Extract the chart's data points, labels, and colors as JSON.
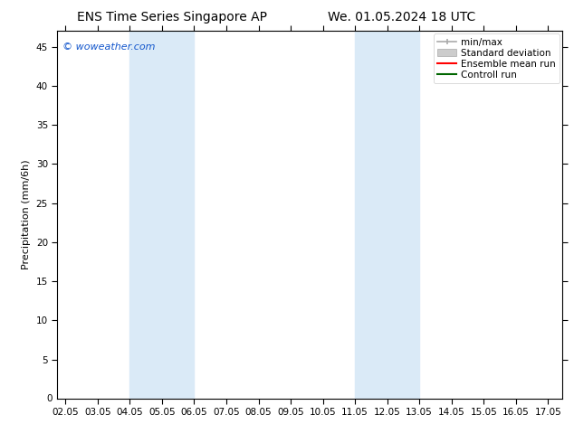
{
  "title_left": "ENS Time Series Singapore AP",
  "title_right": "We. 01.05.2024 18 UTC",
  "ylabel": "Precipitation (mm/6h)",
  "watermark": "© woweather.com",
  "watermark_color": "#1155cc",
  "bg_color": "#ffffff",
  "plot_bg_color": "#ffffff",
  "shaded_regions": [
    {
      "xmin": 4.05,
      "xmax": 6.05,
      "color": "#daeaf7"
    },
    {
      "xmin": 11.05,
      "xmax": 13.05,
      "color": "#daeaf7"
    }
  ],
  "x_ticks": [
    2.05,
    3.05,
    4.05,
    5.05,
    6.05,
    7.05,
    8.05,
    9.05,
    10.05,
    11.05,
    12.05,
    13.05,
    14.05,
    15.05,
    16.05,
    17.05
  ],
  "x_tick_labels": [
    "02.05",
    "03.05",
    "04.05",
    "05.05",
    "06.05",
    "07.05",
    "08.05",
    "09.05",
    "10.05",
    "11.05",
    "12.05",
    "13.05",
    "14.05",
    "15.05",
    "16.05",
    "17.05"
  ],
  "xlim": [
    1.8,
    17.5
  ],
  "ylim": [
    0,
    47
  ],
  "y_ticks": [
    5,
    10,
    15,
    20,
    25,
    30,
    35,
    40,
    45
  ],
  "y_tick_labels": [
    "5",
    "10",
    "15",
    "20",
    "25",
    "30",
    "35",
    "40",
    "45"
  ],
  "legend_entries": [
    {
      "label": "min/max",
      "color": "#aaaaaa",
      "style": "range"
    },
    {
      "label": "Standard deviation",
      "color": "#cccccc",
      "style": "band"
    },
    {
      "label": "Ensemble mean run",
      "color": "#ff0000",
      "style": "line"
    },
    {
      "label": "Controll run",
      "color": "#006600",
      "style": "line"
    }
  ],
  "title_fontsize": 10,
  "axis_label_fontsize": 8,
  "tick_fontsize": 7.5,
  "legend_fontsize": 7.5,
  "watermark_fontsize": 8
}
